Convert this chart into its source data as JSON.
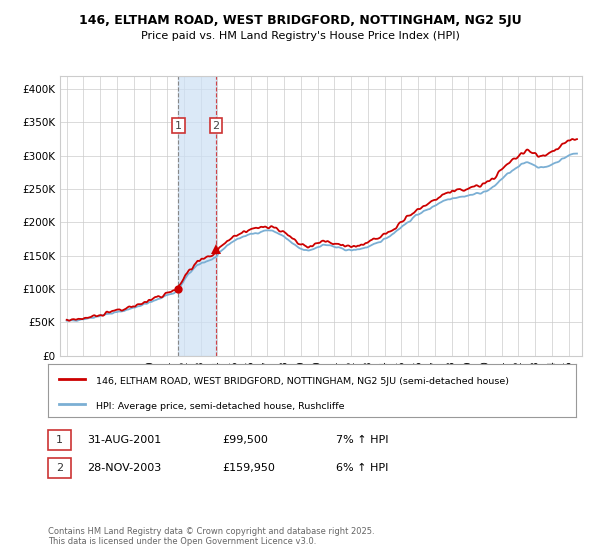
{
  "title_line1": "146, ELTHAM ROAD, WEST BRIDGFORD, NOTTINGHAM, NG2 5JU",
  "title_line2": "Price paid vs. HM Land Registry's House Price Index (HPI)",
  "ylim": [
    0,
    420000
  ],
  "yticks": [
    0,
    50000,
    100000,
    150000,
    200000,
    250000,
    300000,
    350000,
    400000
  ],
  "ytick_labels": [
    "£0",
    "£50K",
    "£100K",
    "£150K",
    "£200K",
    "£250K",
    "£300K",
    "£350K",
    "£400K"
  ],
  "hpi_color": "#7bafd4",
  "price_color": "#cc0000",
  "marker_color": "#cc0000",
  "bg_color": "#ffffff",
  "plot_bg_color": "#ffffff",
  "grid_color": "#cccccc",
  "shade_color": "#cce0f5",
  "legend_label_price": "146, ELTHAM ROAD, WEST BRIDGFORD, NOTTINGHAM, NG2 5JU (semi-detached house)",
  "legend_label_hpi": "HPI: Average price, semi-detached house, Rushcliffe",
  "transaction1_date": "31-AUG-2001",
  "transaction1_price": 99500,
  "transaction1_hpi_pct": "7%",
  "transaction2_date": "28-NOV-2003",
  "transaction2_price": 159950,
  "transaction2_hpi_pct": "6%",
  "footnote": "Contains HM Land Registry data © Crown copyright and database right 2025.\nThis data is licensed under the Open Government Licence v3.0.",
  "marker1_x": 2001.667,
  "marker2_x": 2003.917,
  "vline1_x": 2001.667,
  "vline2_x": 2003.917,
  "shade_x1": 2001.667,
  "shade_x2": 2003.917,
  "xlim_left": 1994.6,
  "xlim_right": 2025.8
}
